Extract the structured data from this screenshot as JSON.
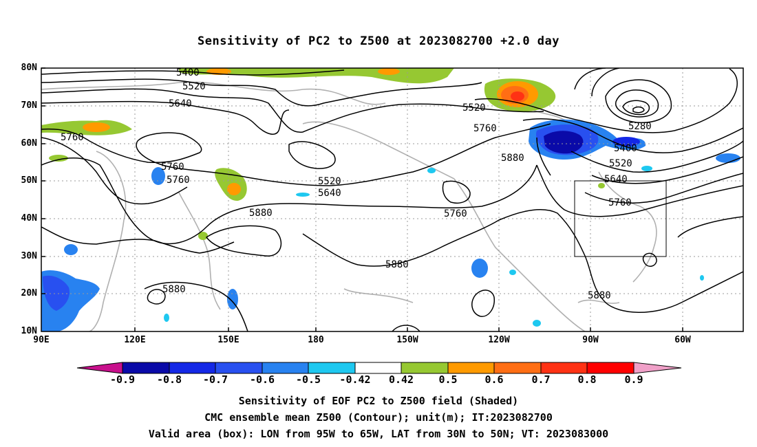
{
  "title": "Sensitivity of PC2 to Z500 at 2023082700 +2.0 day",
  "lat_labels": [
    "80N",
    "70N",
    "60N",
    "50N",
    "40N",
    "30N",
    "20N",
    "10N"
  ],
  "lon_labels": [
    "90E",
    "120E",
    "150E",
    "180",
    "150W",
    "120W",
    "90W",
    "60W"
  ],
  "contour_labels": [
    "5400",
    "5520",
    "5640",
    "5760",
    "5760",
    "5760",
    "5880",
    "5880",
    "5520",
    "5640",
    "5760",
    "5880",
    "5760",
    "5880",
    "5520",
    "5280",
    "5400",
    "5520",
    "5640",
    "5760",
    "5880"
  ],
  "colorbar": {
    "labels": [
      "-0.9",
      "-0.8",
      "-0.7",
      "-0.6",
      "-0.5",
      "-0.42",
      "0.42",
      "0.5",
      "0.6",
      "0.7",
      "0.8",
      "0.9"
    ],
    "colors": [
      "#c8108c",
      "#0a0aa8",
      "#1428e6",
      "#2850f0",
      "#2882f0",
      "#1ec8f0",
      "#ffffff",
      "#96c832",
      "#ff9a00",
      "#ff6e14",
      "#ff3214",
      "#ff0000",
      "#f0a0c8"
    ]
  },
  "footer": {
    "line1": "Sensitivity of EOF PC2 to Z500 field (Shaded)",
    "line2": "CMC ensemble mean Z500 (Contour); unit(m); IT:2023082700",
    "line3": "Valid area (box): LON from 95W to 65W, LAT from 30N to 50N; VT: 2023083000"
  }
}
